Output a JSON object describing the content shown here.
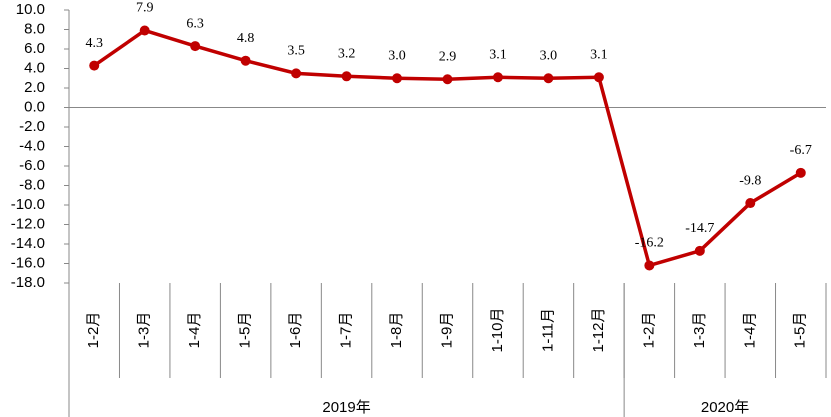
{
  "chart_data": {
    "type": "line",
    "categories": [
      "1-2月",
      "1-3月",
      "1-4月",
      "1-5月",
      "1-6月",
      "1-7月",
      "1-8月",
      "1-9月",
      "1-10月",
      "1-11月",
      "1-12月",
      "1-2月",
      "1-3月",
      "1-4月",
      "1-5月"
    ],
    "groups": [
      {
        "name": "2019年",
        "span": 11
      },
      {
        "name": "2020年",
        "span": 4
      }
    ],
    "series": [
      {
        "color": "#c00000",
        "values": [
          4.3,
          7.9,
          6.3,
          4.8,
          3.5,
          3.2,
          3.0,
          2.9,
          3.1,
          3.0,
          3.1,
          -16.2,
          -14.7,
          -9.8,
          -6.7
        ],
        "value_labels": [
          "4.3",
          "7.9",
          "6.3",
          "4.8",
          "3.5",
          "3.2",
          "3.0",
          "2.9",
          "3.1",
          "3.0",
          "3.1",
          "-16.2",
          "-14.7",
          "-9.8",
          "-6.7"
        ]
      }
    ],
    "ylim": [
      -18,
      10
    ],
    "yticks": [
      {
        "value": 10,
        "label": "10.0"
      },
      {
        "value": 8,
        "label": "8.0"
      },
      {
        "value": 6,
        "label": "6.0"
      },
      {
        "value": 4,
        "label": "4.0"
      },
      {
        "value": 2,
        "label": "2.0"
      },
      {
        "value": 0,
        "label": "0.0"
      },
      {
        "value": -2,
        "label": "-2.0"
      },
      {
        "value": -4,
        "label": "-4.0"
      },
      {
        "value": -6,
        "label": "-6.0"
      },
      {
        "value": -8,
        "label": "-8.0"
      },
      {
        "value": -10,
        "label": "-10.0"
      },
      {
        "value": -12,
        "label": "-12.0"
      },
      {
        "value": -14,
        "label": "-14.0"
      },
      {
        "value": -16,
        "label": "-16.0"
      },
      {
        "value": -18,
        "label": "-18.0"
      }
    ]
  }
}
